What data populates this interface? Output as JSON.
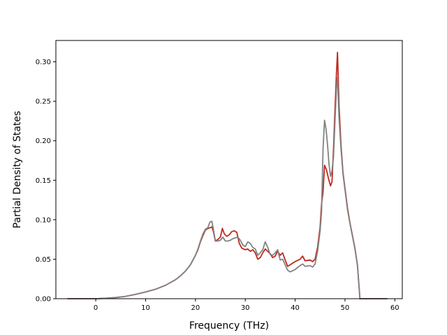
{
  "chart_data": {
    "type": "line",
    "title": "",
    "xlabel": "Frequency (THz)",
    "ylabel": "Partial Density of States",
    "xlim": [
      -8.0,
      61.5
    ],
    "ylim": [
      0.0,
      0.327
    ],
    "xticks": [
      0,
      10,
      20,
      30,
      40,
      50,
      60
    ],
    "xtick_labels": [
      "0",
      "10",
      "20",
      "30",
      "40",
      "50",
      "60"
    ],
    "yticks": [
      0.0,
      0.05,
      0.1,
      0.15,
      0.2,
      0.25,
      0.3
    ],
    "ytick_labels": [
      "0.00",
      "0.05",
      "0.10",
      "0.15",
      "0.20",
      "0.25",
      "0.30"
    ],
    "grid": false,
    "legend": "none",
    "series": [
      {
        "color": "#c0281e",
        "points": [
          [
            -5.7,
            0.0
          ],
          [
            0,
            0.0
          ],
          [
            2,
            0.0005
          ],
          [
            4,
            0.0015
          ],
          [
            6,
            0.003
          ],
          [
            8,
            0.0055
          ],
          [
            10,
            0.0085
          ],
          [
            12,
            0.012
          ],
          [
            14,
            0.017
          ],
          [
            16,
            0.024
          ],
          [
            17,
            0.029
          ],
          [
            18,
            0.035
          ],
          [
            19,
            0.043
          ],
          [
            20,
            0.055
          ],
          [
            20.5,
            0.062
          ],
          [
            21,
            0.072
          ],
          [
            21.5,
            0.08
          ],
          [
            22,
            0.087
          ],
          [
            22.5,
            0.089
          ],
          [
            23,
            0.09
          ],
          [
            23.3,
            0.091
          ],
          [
            23.6,
            0.085
          ],
          [
            24,
            0.073
          ],
          [
            24.5,
            0.075
          ],
          [
            25,
            0.078
          ],
          [
            25.4,
            0.089
          ],
          [
            25.8,
            0.082
          ],
          [
            26.3,
            0.079
          ],
          [
            26.8,
            0.081
          ],
          [
            27.3,
            0.085
          ],
          [
            27.8,
            0.086
          ],
          [
            28.3,
            0.084
          ],
          [
            28.8,
            0.07
          ],
          [
            29.3,
            0.064
          ],
          [
            30,
            0.062
          ],
          [
            30.5,
            0.063
          ],
          [
            31,
            0.06
          ],
          [
            31.5,
            0.062
          ],
          [
            32,
            0.058
          ],
          [
            32.5,
            0.05
          ],
          [
            33,
            0.052
          ],
          [
            33.5,
            0.058
          ],
          [
            34,
            0.063
          ],
          [
            34.5,
            0.06
          ],
          [
            35,
            0.057
          ],
          [
            35.5,
            0.052
          ],
          [
            36,
            0.054
          ],
          [
            36.5,
            0.06
          ],
          [
            37,
            0.055
          ],
          [
            37.5,
            0.058
          ],
          [
            38,
            0.049
          ],
          [
            38.5,
            0.041
          ],
          [
            39,
            0.043
          ],
          [
            40,
            0.047
          ],
          [
            41,
            0.05
          ],
          [
            41.5,
            0.054
          ],
          [
            42,
            0.048
          ],
          [
            43,
            0.049
          ],
          [
            43.5,
            0.047
          ],
          [
            44,
            0.05
          ],
          [
            44.5,
            0.065
          ],
          [
            45,
            0.09
          ],
          [
            45.3,
            0.12
          ],
          [
            45.6,
            0.135
          ],
          [
            45.9,
            0.169
          ],
          [
            46.3,
            0.163
          ],
          [
            46.7,
            0.152
          ],
          [
            47.1,
            0.143
          ],
          [
            47.4,
            0.148
          ],
          [
            47.7,
            0.19
          ],
          [
            48,
            0.24
          ],
          [
            48.3,
            0.287
          ],
          [
            48.5,
            0.312
          ],
          [
            48.8,
            0.245
          ],
          [
            49.2,
            0.195
          ],
          [
            49.6,
            0.16
          ],
          [
            50,
            0.14
          ],
          [
            50.5,
            0.115
          ],
          [
            51,
            0.096
          ],
          [
            51.5,
            0.08
          ],
          [
            52,
            0.064
          ],
          [
            52.5,
            0.043
          ],
          [
            53,
            0.0
          ],
          [
            58.5,
            0.0
          ]
        ]
      },
      {
        "color": "#828282",
        "points": [
          [
            -5.7,
            0.0
          ],
          [
            0,
            0.0
          ],
          [
            2,
            0.0005
          ],
          [
            4,
            0.0015
          ],
          [
            6,
            0.003
          ],
          [
            8,
            0.0055
          ],
          [
            10,
            0.0085
          ],
          [
            12,
            0.012
          ],
          [
            14,
            0.017
          ],
          [
            16,
            0.024
          ],
          [
            17,
            0.029
          ],
          [
            18,
            0.035
          ],
          [
            19,
            0.043
          ],
          [
            20,
            0.055
          ],
          [
            20.5,
            0.063
          ],
          [
            21,
            0.073
          ],
          [
            21.5,
            0.082
          ],
          [
            22,
            0.088
          ],
          [
            22.5,
            0.09
          ],
          [
            22.9,
            0.097
          ],
          [
            23.3,
            0.098
          ],
          [
            23.6,
            0.088
          ],
          [
            24,
            0.073
          ],
          [
            24.5,
            0.073
          ],
          [
            25,
            0.074
          ],
          [
            25.5,
            0.078
          ],
          [
            26,
            0.073
          ],
          [
            26.5,
            0.073
          ],
          [
            27,
            0.074
          ],
          [
            27.5,
            0.076
          ],
          [
            28,
            0.077
          ],
          [
            28.5,
            0.078
          ],
          [
            29,
            0.074
          ],
          [
            29.5,
            0.068
          ],
          [
            30,
            0.066
          ],
          [
            30.5,
            0.072
          ],
          [
            31,
            0.07
          ],
          [
            31.5,
            0.065
          ],
          [
            32,
            0.063
          ],
          [
            32.5,
            0.055
          ],
          [
            33,
            0.058
          ],
          [
            33.5,
            0.062
          ],
          [
            34,
            0.072
          ],
          [
            34.5,
            0.065
          ],
          [
            35,
            0.056
          ],
          [
            35.5,
            0.055
          ],
          [
            36,
            0.058
          ],
          [
            36.5,
            0.062
          ],
          [
            37,
            0.049
          ],
          [
            37.5,
            0.05
          ],
          [
            38,
            0.043
          ],
          [
            38.5,
            0.036
          ],
          [
            39,
            0.034
          ],
          [
            40,
            0.037
          ],
          [
            41,
            0.042
          ],
          [
            41.5,
            0.044
          ],
          [
            42,
            0.041
          ],
          [
            43,
            0.042
          ],
          [
            43.5,
            0.04
          ],
          [
            44,
            0.044
          ],
          [
            44.5,
            0.06
          ],
          [
            45,
            0.085
          ],
          [
            45.3,
            0.11
          ],
          [
            45.6,
            0.19
          ],
          [
            45.9,
            0.226
          ],
          [
            46.2,
            0.215
          ],
          [
            46.5,
            0.195
          ],
          [
            46.8,
            0.17
          ],
          [
            47.1,
            0.155
          ],
          [
            47.4,
            0.162
          ],
          [
            47.7,
            0.18
          ],
          [
            48,
            0.225
          ],
          [
            48.3,
            0.268
          ],
          [
            48.5,
            0.28
          ],
          [
            48.8,
            0.23
          ],
          [
            49.2,
            0.19
          ],
          [
            49.6,
            0.158
          ],
          [
            50,
            0.138
          ],
          [
            50.5,
            0.113
          ],
          [
            51,
            0.095
          ],
          [
            51.5,
            0.079
          ],
          [
            52,
            0.063
          ],
          [
            52.5,
            0.042
          ],
          [
            53,
            0.0
          ],
          [
            58.5,
            0.0
          ]
        ]
      }
    ]
  }
}
